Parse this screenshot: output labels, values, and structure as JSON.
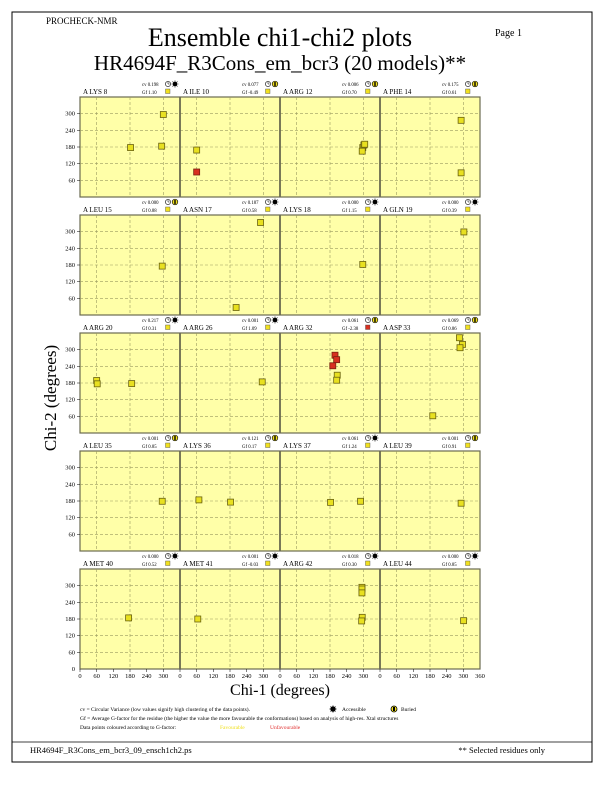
{
  "header": {
    "program": "PROCHECK-NMR",
    "page": "Page  1",
    "title": "Ensemble chi1-chi2 plots",
    "subtitle": "HR4694F_R3Cons_em_bcr3 (20 models)**"
  },
  "colors": {
    "plot_bg": "#ffffa8",
    "favourable": "#e8e020",
    "unfavourable": "#d83020",
    "grid": "#9a9a60"
  },
  "legend": {
    "cv_line": "cv = Circular Variance (low values signify high clustering of the data points).",
    "accessible": "Accessible",
    "buried": "Buried",
    "gf_line": "Gf = Average G-factor for the residue (the higher the value the more favourable the conformations) based on analysis of high-res. Xtal structures",
    "colour_line": "Data points coloured according to G-factor:",
    "favourable": "Favourable",
    "unfavourable": "Unfavourable"
  },
  "footer": {
    "filename": "HR4694F_R3Cons_em_bcr3_09_ensch1ch2.ps",
    "note": "** Selected residues only"
  },
  "chart_data": {
    "type": "scatter",
    "xlabel": "Chi-1 (degrees)",
    "ylabel": "Chi-2 (degrees)",
    "xlim": [
      0,
      360
    ],
    "ylim": [
      0,
      360
    ],
    "xticks": [
      "0",
      "60",
      "120",
      "180",
      "240",
      "300"
    ],
    "xtick_last": "360",
    "yticks": [
      "60",
      "120",
      "180",
      "240",
      "300"
    ],
    "ytick_zero": "0",
    "grid": true,
    "panels": [
      {
        "residue": "A LYS 8",
        "cv": "cv 0.198",
        "gf": "Gf  1.10",
        "access": "accessible",
        "gf_fav": true,
        "points": [
          [
            182,
            178,
            1
          ],
          [
            294,
            183,
            1
          ],
          [
            300,
            297,
            1
          ]
        ]
      },
      {
        "residue": "A ILE 10",
        "cv": "cv 0.077",
        "gf": "Gf -0.49",
        "access": "buried",
        "gf_fav": true,
        "points": [
          [
            60,
            169,
            1
          ],
          [
            60,
            90,
            0
          ]
        ]
      },
      {
        "residue": "A ARG 12",
        "cv": "cv 0.006",
        "gf": "Gf  0.70",
        "access": "buried",
        "gf_fav": true,
        "points": [
          [
            298,
            178,
            1
          ],
          [
            302,
            187,
            1
          ],
          [
            296,
            165,
            1
          ],
          [
            305,
            190,
            1
          ]
        ]
      },
      {
        "residue": "A PHE 14",
        "cv": "cv 0.175",
        "gf": "Gf  0.61",
        "access": "buried",
        "gf_fav": true,
        "points": [
          [
            292,
            276,
            1
          ],
          [
            292,
            87,
            1
          ]
        ]
      },
      {
        "residue": "A LEU 15",
        "cv": "cv 0.000",
        "gf": "Gf  0.88",
        "access": "buried",
        "gf_fav": true,
        "points": [
          [
            296,
            176,
            1
          ]
        ]
      },
      {
        "residue": "A ASN 17",
        "cv": "cv 0.187",
        "gf": "Gf  0.58",
        "access": "accessible",
        "gf_fav": true,
        "points": [
          [
            290,
            333,
            1
          ],
          [
            202,
            27,
            1
          ]
        ]
      },
      {
        "residue": "A LYS 18",
        "cv": "cv 0.000",
        "gf": "Gf  1.15",
        "access": "accessible",
        "gf_fav": true,
        "points": [
          [
            298,
            182,
            1
          ]
        ]
      },
      {
        "residue": "A GLN 19",
        "cv": "cv 0.000",
        "gf": "Gf  0.39",
        "access": "accessible",
        "gf_fav": true,
        "points": [
          [
            302,
            299,
            1
          ]
        ]
      },
      {
        "residue": "A ARG 20",
        "cv": "cv 0.217",
        "gf": "Gf  0.31",
        "access": "accessible",
        "gf_fav": true,
        "points": [
          [
            60,
            189,
            1
          ],
          [
            62,
            177,
            1
          ],
          [
            186,
            178,
            1
          ]
        ]
      },
      {
        "residue": "A ARG 26",
        "cv": "cv 0.001",
        "gf": "Gf  1.09",
        "access": "accessible",
        "gf_fav": true,
        "points": [
          [
            296,
            184,
            1
          ]
        ]
      },
      {
        "residue": "A ARG 32",
        "cv": "cv 0.061",
        "gf": "Gf -2.38",
        "access": "buried",
        "gf_fav": false,
        "points": [
          [
            198,
            280,
            0
          ],
          [
            204,
            264,
            0
          ],
          [
            190,
            242,
            0
          ],
          [
            206,
            208,
            1
          ],
          [
            204,
            190,
            1
          ]
        ]
      },
      {
        "residue": "A ASP 33",
        "cv": "cv 0.069",
        "gf": "Gf  0.86",
        "access": "buried",
        "gf_fav": true,
        "points": [
          [
            286,
            343,
            1
          ],
          [
            297,
            319,
            1
          ],
          [
            288,
            307,
            1
          ],
          [
            190,
            62,
            1
          ]
        ]
      },
      {
        "residue": "A LEU 35",
        "cv": "cv 0.001",
        "gf": "Gf  0.85",
        "access": "buried",
        "gf_fav": true,
        "points": [
          [
            296,
            179,
            1
          ]
        ]
      },
      {
        "residue": "A LYS 36",
        "cv": "cv 0.121",
        "gf": "Gf  0.17",
        "access": "buried",
        "gf_fav": true,
        "points": [
          [
            68,
            184,
            1
          ],
          [
            182,
            176,
            1
          ]
        ]
      },
      {
        "residue": "A LYS 37",
        "cv": "cv 0.061",
        "gf": "Gf  1.24",
        "access": "accessible",
        "gf_fav": true,
        "points": [
          [
            182,
            175,
            1
          ],
          [
            290,
            179,
            1
          ]
        ]
      },
      {
        "residue": "A LEU 39",
        "cv": "cv 0.001",
        "gf": "Gf  0.91",
        "access": "buried",
        "gf_fav": true,
        "points": [
          [
            292,
            172,
            1
          ]
        ]
      },
      {
        "residue": "A MET 40",
        "cv": "cv 0.000",
        "gf": "Gf  0.52",
        "access": "accessible",
        "gf_fav": true,
        "points": [
          [
            175,
            184,
            1
          ]
        ]
      },
      {
        "residue": "A MET 41",
        "cv": "cv 0.001",
        "gf": "Gf -0.03",
        "access": "accessible",
        "gf_fav": true,
        "points": [
          [
            64,
            180,
            1
          ]
        ]
      },
      {
        "residue": "A ARG 42",
        "cv": "cv 0.018",
        "gf": "Gf  0.30",
        "access": "accessible",
        "gf_fav": true,
        "points": [
          [
            295,
            294,
            1
          ],
          [
            295,
            288,
            1
          ],
          [
            295,
            274,
            1
          ],
          [
            296,
            186,
            1
          ],
          [
            294,
            173,
            1
          ]
        ]
      },
      {
        "residue": "A LEU 44",
        "cv": "cv 0.000",
        "gf": "Gf  0.85",
        "access": "accessible",
        "gf_fav": true,
        "points": [
          [
            301,
            174,
            1
          ]
        ]
      }
    ]
  }
}
